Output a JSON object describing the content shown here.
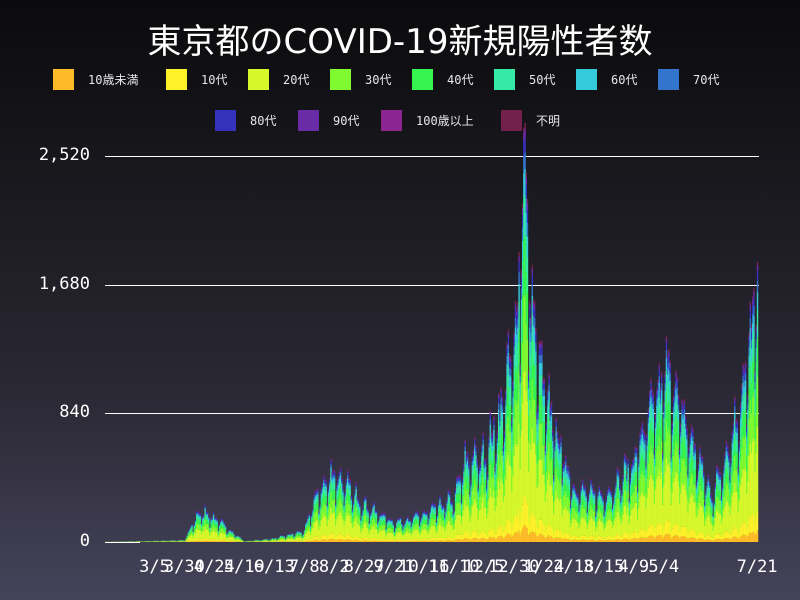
{
  "title": "東京都のCOVID-19新規陽性者数",
  "legend": [
    {
      "label": "10歳未満",
      "color": "#fdbb27"
    },
    {
      "label": "10代",
      "color": "#fdf12a"
    },
    {
      "label": "20代",
      "color": "#d6f82b"
    },
    {
      "label": "30代",
      "color": "#7ff930"
    },
    {
      "label": "40代",
      "color": "#36f450"
    },
    {
      "label": "50代",
      "color": "#35eaa4"
    },
    {
      "label": "60代",
      "color": "#34cadc"
    },
    {
      "label": "70代",
      "color": "#3374cc"
    },
    {
      "label": "80代",
      "color": "#3431bc"
    },
    {
      "label": "90代",
      "color": "#6a2ba6"
    },
    {
      "label": "100歳以上",
      "color": "#8c2592"
    },
    {
      "label": "不明",
      "color": "#72214c"
    }
  ],
  "chart_data": {
    "type": "bar",
    "stacked": true,
    "title": "東京都のCOVID-19新規陽性者数",
    "xlabel": "",
    "ylabel": "",
    "ylim": [
      0,
      2520
    ],
    "yticks": [
      0,
      840,
      1680,
      2520
    ],
    "ytick_labels": [
      "0",
      "840",
      "1,680",
      "2,520"
    ],
    "xtick_labels": [
      "3/5",
      "3/30",
      "4/24",
      "5/19",
      "6/13",
      "7/8",
      "8/2",
      "8/27",
      "9/21",
      "10/16",
      "11/10",
      "12/5",
      "12/30",
      "1/24",
      "2/18",
      "3/15",
      "4/9",
      "5/4",
      "7/21"
    ],
    "grid": true,
    "legend_position": "top",
    "series": [
      "10歳未満",
      "10代",
      "20代",
      "30代",
      "40代",
      "50代",
      "60代",
      "70代",
      "80代",
      "90代",
      "100歳以上",
      "不明"
    ],
    "daily_total_keypoints": [
      {
        "date": "2020-01-24",
        "value": 1
      },
      {
        "date": "2020-03-05",
        "value": 8
      },
      {
        "date": "2020-03-30",
        "value": 13
      },
      {
        "date": "2020-04-10",
        "value": 189
      },
      {
        "date": "2020-04-17",
        "value": 201
      },
      {
        "date": "2020-04-24",
        "value": 161
      },
      {
        "date": "2020-05-19",
        "value": 5
      },
      {
        "date": "2020-06-13",
        "value": 24
      },
      {
        "date": "2020-07-08",
        "value": 75
      },
      {
        "date": "2020-07-17",
        "value": 293
      },
      {
        "date": "2020-08-01",
        "value": 472
      },
      {
        "date": "2020-08-27",
        "value": 250
      },
      {
        "date": "2020-09-21",
        "value": 130
      },
      {
        "date": "2020-10-16",
        "value": 184
      },
      {
        "date": "2020-11-10",
        "value": 293
      },
      {
        "date": "2020-11-19",
        "value": 534
      },
      {
        "date": "2020-12-05",
        "value": 584
      },
      {
        "date": "2020-12-17",
        "value": 822
      },
      {
        "date": "2020-12-31",
        "value": 1337
      },
      {
        "date": "2021-01-07",
        "value": 2520
      },
      {
        "date": "2021-01-14",
        "value": 1502
      },
      {
        "date": "2021-01-24",
        "value": 986
      },
      {
        "date": "2021-02-18",
        "value": 353
      },
      {
        "date": "2021-03-15",
        "value": 300
      },
      {
        "date": "2021-04-09",
        "value": 537
      },
      {
        "date": "2021-04-22",
        "value": 861
      },
      {
        "date": "2021-05-08",
        "value": 1121
      },
      {
        "date": "2021-05-20",
        "value": 843
      },
      {
        "date": "2021-06-13",
        "value": 304
      },
      {
        "date": "2021-06-24",
        "value": 570
      },
      {
        "date": "2021-07-07",
        "value": 920
      },
      {
        "date": "2021-07-15",
        "value": 1308
      },
      {
        "date": "2021-07-21",
        "value": 1832
      }
    ],
    "age_share": [
      0.04,
      0.07,
      0.3,
      0.18,
      0.14,
      0.1,
      0.06,
      0.04,
      0.035,
      0.02,
      0.002,
      0.013
    ]
  }
}
